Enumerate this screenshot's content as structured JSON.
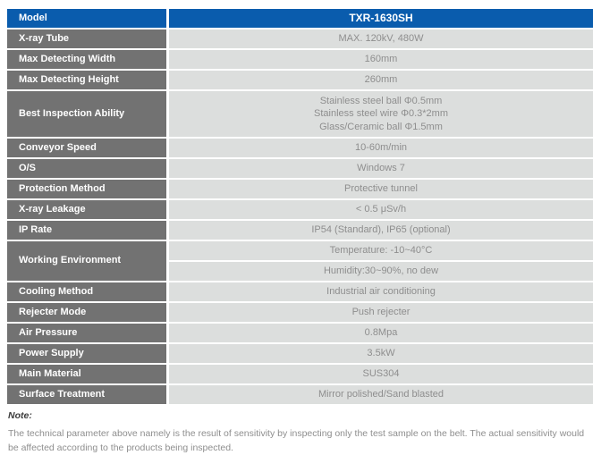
{
  "table": {
    "rows": [
      {
        "label": "Model",
        "value": "TXR-1630SH",
        "variant": "model"
      },
      {
        "label": "X-ray Tube",
        "value": "MAX. 120kV, 480W"
      },
      {
        "label": "Max Detecting Width",
        "value": "160mm"
      },
      {
        "label": "Max Detecting Height",
        "value": "260mm"
      },
      {
        "label": "Best Inspection Ability",
        "lines": [
          "Stainless steel ball Φ0.5mm",
          "Stainless steel wire Φ0.3*2mm",
          "Glass/Ceramic ball Φ1.5mm"
        ]
      },
      {
        "label": "Conveyor Speed",
        "value": "10-60m/min"
      },
      {
        "label": "O/S",
        "value": "Windows 7"
      },
      {
        "label": "Protection Method",
        "value": "Protective tunnel"
      },
      {
        "label": "X-ray Leakage",
        "value": "< 0.5 μSv/h"
      },
      {
        "label": "IP Rate",
        "value": "IP54 (Standard), IP65 (optional)"
      },
      {
        "label": "Working Environment",
        "cells": [
          "Temperature: -10~40°C",
          "Humidity:30~90%, no dew"
        ]
      },
      {
        "label": "Cooling Method",
        "value": "Industrial air conditioning"
      },
      {
        "label": "Rejecter Mode",
        "value": "Push rejecter"
      },
      {
        "label": "Air Pressure",
        "value": "0.8Mpa"
      },
      {
        "label": "Power Supply",
        "value": "3.5kW"
      },
      {
        "label": "Main Material",
        "value": "SUS304"
      },
      {
        "label": "Surface Treatment",
        "value": "Mirror polished/Sand blasted"
      }
    ]
  },
  "note": {
    "title": "Note:",
    "body": "The technical parameter above namely is the result of sensitivity by inspecting only the test sample on the belt. The actual sensitivity would be affected according to the products being inspected."
  },
  "colors": {
    "accent_blue": "#0a5cad",
    "label_gray": "#727272",
    "value_bg": "#dcdedd",
    "value_text": "#8e8e8e"
  }
}
